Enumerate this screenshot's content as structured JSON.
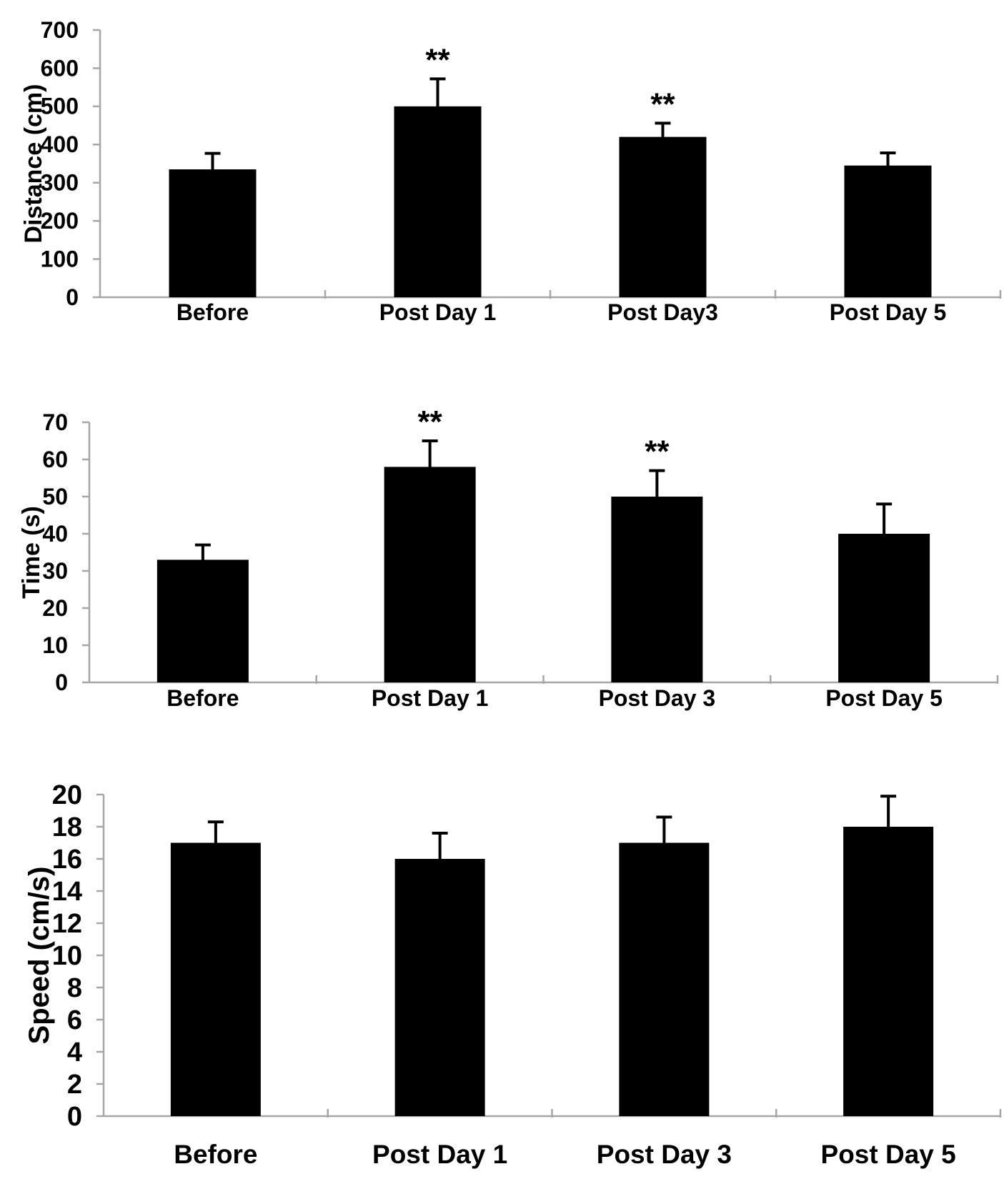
{
  "figure": {
    "background": "#ffffff",
    "bar_color": "#000000",
    "axis_color": "#a6a6a6",
    "text_color": "#000000",
    "error_bar_color": "#000000",
    "significance_marker": "**"
  },
  "chart_data": [
    {
      "type": "bar",
      "title": "",
      "ylabel": "Distance (cm)",
      "xlabel": "",
      "ylim": [
        0,
        700
      ],
      "ytick_step": 100,
      "ytick_labels": [
        "0",
        "100",
        "200",
        "300",
        "400",
        "500",
        "600",
        "700"
      ],
      "grid": false,
      "legend": "none",
      "categories": [
        "Before",
        "Post Day 1",
        "Post Day3",
        "Post Day 5"
      ],
      "values": [
        335,
        500,
        420,
        345
      ],
      "errors_plus": [
        42,
        72,
        36,
        33
      ],
      "annotations": [
        "",
        "**",
        "**",
        ""
      ]
    },
    {
      "type": "bar",
      "title": "",
      "ylabel": "Time (s)",
      "xlabel": "",
      "ylim": [
        0,
        70
      ],
      "ytick_step": 10,
      "ytick_labels": [
        "0",
        "10",
        "20",
        "30",
        "40",
        "50",
        "60",
        "70"
      ],
      "grid": false,
      "legend": "none",
      "categories": [
        "Before",
        "Post Day 1",
        "Post Day 3",
        "Post Day 5"
      ],
      "values": [
        33,
        58,
        50,
        40
      ],
      "errors_plus": [
        4,
        7,
        7,
        8
      ],
      "annotations": [
        "",
        "**",
        "**",
        ""
      ]
    },
    {
      "type": "bar",
      "title": "",
      "ylabel": "Speed (cm/s)",
      "xlabel": "",
      "ylim": [
        0,
        20
      ],
      "ytick_step": 2,
      "ytick_labels": [
        "0",
        "2",
        "4",
        "6",
        "8",
        "10",
        "12",
        "14",
        "16",
        "18",
        "20"
      ],
      "grid": false,
      "legend": "none",
      "categories": [
        "Before",
        "Post Day 1",
        "Post Day 3",
        "Post Day 5"
      ],
      "values": [
        17,
        16,
        17,
        18
      ],
      "errors_plus": [
        1.3,
        1.6,
        1.6,
        1.9
      ],
      "annotations": [
        "",
        "",
        "",
        ""
      ]
    }
  ]
}
